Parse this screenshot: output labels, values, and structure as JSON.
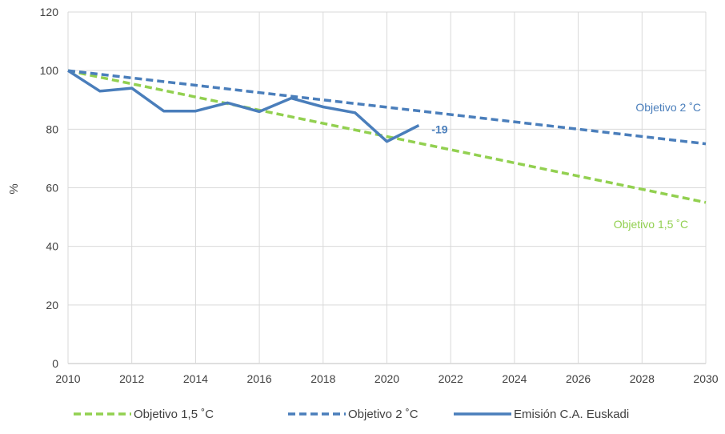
{
  "chart_data": {
    "type": "line",
    "title": "",
    "xlabel": "",
    "ylabel": "%",
    "xlim": [
      2010,
      2030
    ],
    "ylim": [
      0,
      120
    ],
    "x_ticks": [
      2010,
      2012,
      2014,
      2016,
      2018,
      2020,
      2022,
      2024,
      2026,
      2028,
      2030
    ],
    "y_ticks": [
      0,
      20,
      40,
      60,
      80,
      100,
      120
    ],
    "grid": true,
    "legend_position": "bottom",
    "series": [
      {
        "name": "Objetivo 1,5 ˚C",
        "style": "dashed",
        "color": "#92d050",
        "x": [
          2010,
          2030
        ],
        "y": [
          100,
          55
        ]
      },
      {
        "name": "Objetivo 2 ˚C",
        "style": "dashed",
        "color": "#4a7ebb",
        "x": [
          2010,
          2030
        ],
        "y": [
          100,
          75
        ]
      },
      {
        "name": "Emisión C.A. Euskadi",
        "style": "solid",
        "color": "#4a7ebb",
        "x": [
          2010,
          2011,
          2012,
          2013,
          2014,
          2015,
          2016,
          2017,
          2018,
          2019,
          2020,
          2021
        ],
        "y": [
          100,
          93,
          94,
          86.2,
          86.2,
          89,
          86,
          90.6,
          87.6,
          85.6,
          75.8,
          81.3
        ]
      }
    ],
    "annotations": [
      {
        "text": "-19",
        "x": 2021.4,
        "y": 80,
        "color": "#4a7ebb",
        "bold": true,
        "anchor": "start"
      },
      {
        "text": "Objetivo 2 ˚C",
        "x": 2029.85,
        "y": 87.5,
        "color": "#4a7ebb",
        "bold": false,
        "anchor": "end"
      },
      {
        "text": "Objetivo 1,5 ˚C",
        "x": 2029.45,
        "y": 47.5,
        "color": "#92d050",
        "bold": false,
        "anchor": "end"
      }
    ]
  }
}
